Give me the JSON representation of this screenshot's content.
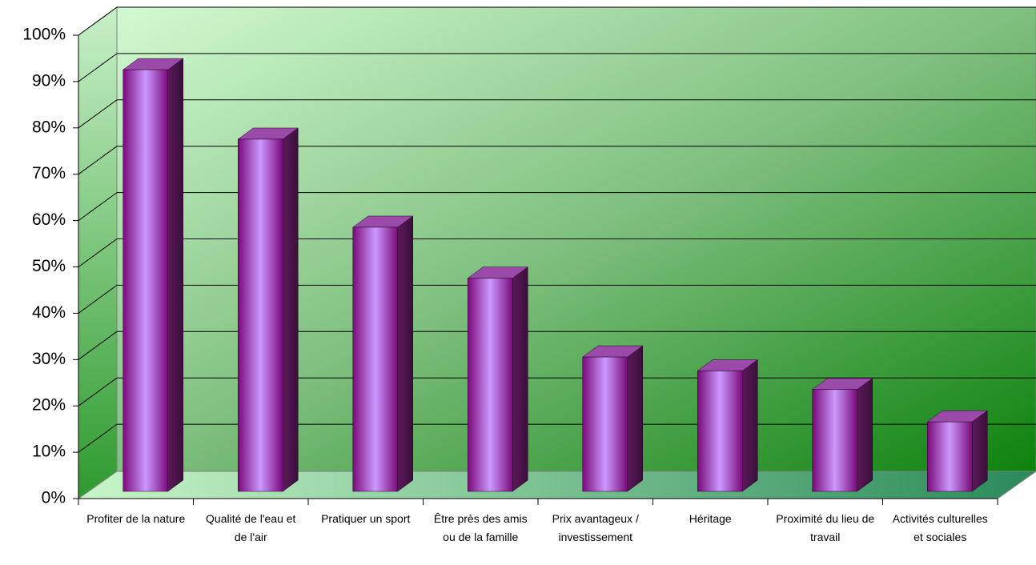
{
  "chart_data": {
    "type": "bar3d",
    "categories": [
      "Profiter de la nature",
      "Qualité de l'eau et de l'air",
      "Pratiquer un sport",
      "Être près des amis ou de la famille",
      "Prix avantageux / investissement",
      "Héritage",
      "Proximité du lieu de travail",
      "Activités culturelles et sociales"
    ],
    "values": [
      91,
      76,
      57,
      46,
      29,
      26,
      22,
      15
    ],
    "color": "#8a1a8a",
    "ylim": [
      0,
      100
    ],
    "yticks": [
      {
        "value": 0,
        "label": "0%"
      },
      {
        "value": 10,
        "label": "10%"
      },
      {
        "value": 20,
        "label": "20%"
      },
      {
        "value": 30,
        "label": "30%"
      },
      {
        "value": 40,
        "label": "40%"
      },
      {
        "value": 50,
        "label": "50%"
      },
      {
        "value": 60,
        "label": "60%"
      },
      {
        "value": 70,
        "label": "70%"
      },
      {
        "value": 80,
        "label": "80%"
      },
      {
        "value": 90,
        "label": "90%"
      },
      {
        "value": 100,
        "label": "100%"
      }
    ],
    "grid": true
  }
}
